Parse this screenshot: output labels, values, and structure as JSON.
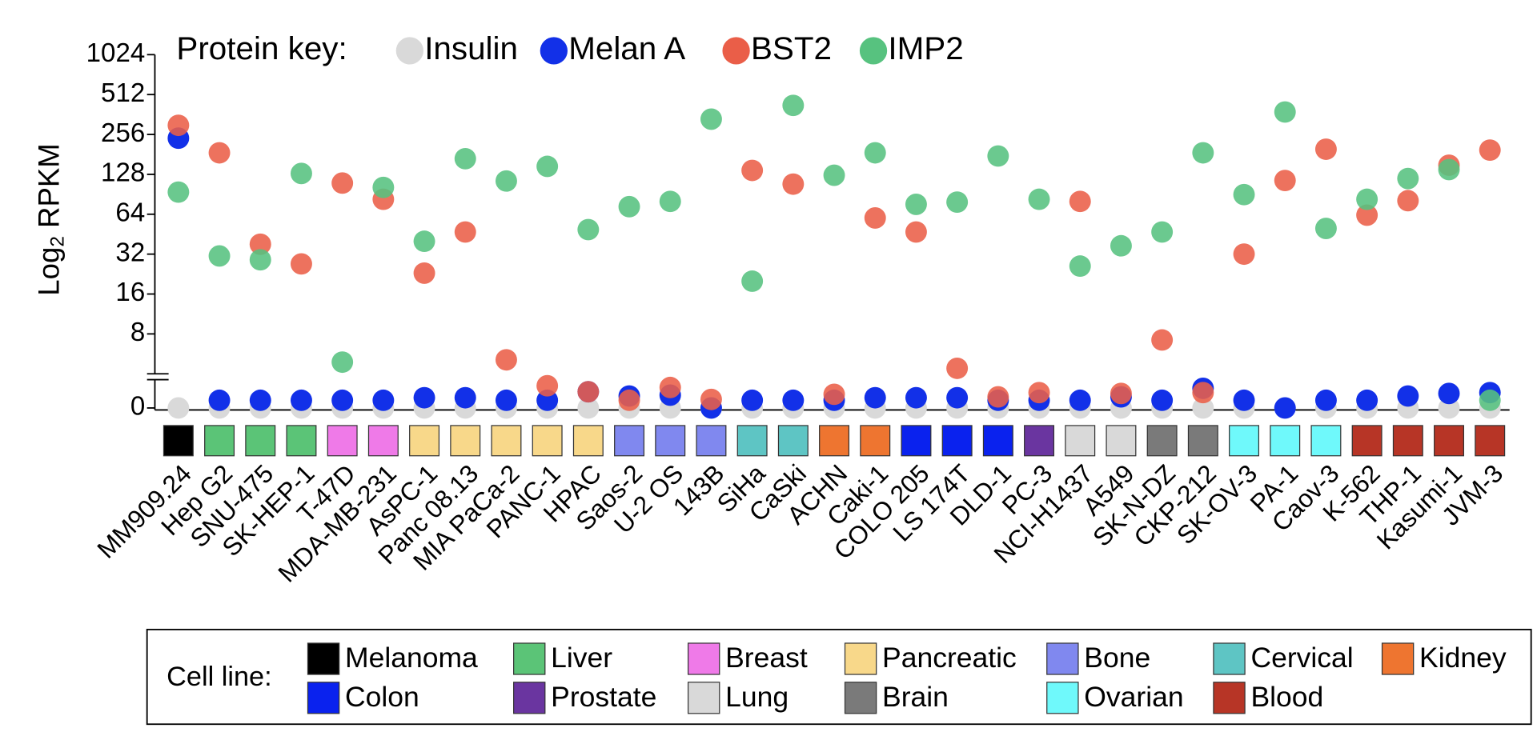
{
  "chart_data": {
    "type": "dot",
    "ylabel_parts": [
      "Log",
      "2",
      "RPKM"
    ],
    "yscale": "log",
    "log_base": 2,
    "axis_break": true,
    "ylim": [
      0,
      1024
    ],
    "yticks": [
      0,
      8,
      16,
      32,
      64,
      128,
      256,
      512,
      1024
    ],
    "legend_title": "Protein key:",
    "categories": [
      "MM909.24",
      "Hep G2",
      "SNU-475",
      "SK-HEP-1",
      "T-47D",
      "MDA-MB-231",
      "AsPC-1",
      "Panc 08.13",
      "MIA PaCa-2",
      "PANC-1",
      "HPAC",
      "Saos-2",
      "U-2 OS",
      "143B",
      "SiHa",
      "CaSki",
      "ACHN",
      "Caki-1",
      "COLO 205",
      "LS 174T",
      "DLD-1",
      "PC-3",
      "NCI-H1437",
      "A549",
      "SK-N-DZ",
      "CKP-212",
      "SK-OV-3",
      "PA-1",
      "Caov-3",
      "K-562",
      "THP-1",
      "Kasumi-1",
      "JVM-3"
    ],
    "category_colors": [
      "#000000",
      "#5bc477",
      "#5bc477",
      "#5bc477",
      "#ef7ae8",
      "#ef7ae8",
      "#f8d88a",
      "#f8d88a",
      "#f8d88a",
      "#f8d88a",
      "#f8d88a",
      "#8088ef",
      "#8088ef",
      "#8088ef",
      "#5ec5c4",
      "#5ec5c4",
      "#ee7530",
      "#ee7530",
      "#0a22ee",
      "#0a22ee",
      "#0a22ee",
      "#6a35a0",
      "#d9d9d9",
      "#d9d9d9",
      "#7a7a7a",
      "#7a7a7a",
      "#6ff9fb",
      "#6ff9fb",
      "#6ff9fb",
      "#b73526",
      "#b73526",
      "#b73526",
      "#b73526"
    ],
    "series": [
      {
        "name": "Insulin",
        "color": "#d9d9d9",
        "values": [
          0,
          0,
          0,
          0,
          0,
          0,
          0,
          0,
          0,
          0,
          0,
          0,
          0,
          0,
          0,
          0,
          0,
          0,
          0,
          0,
          0,
          0,
          0,
          0,
          0,
          0,
          0,
          0,
          0,
          0,
          0,
          0,
          0
        ]
      },
      {
        "name": "Melan A",
        "color": "#1230e8",
        "values": [
          240,
          0.9,
          0.9,
          0.9,
          0.9,
          0.9,
          1.2,
          1.2,
          0.9,
          0.9,
          1.9,
          1.4,
          1.5,
          0,
          0.9,
          0.9,
          0.9,
          1.2,
          1.2,
          1.2,
          0.9,
          0.9,
          0.9,
          1.3,
          0.9,
          2.3,
          0.9,
          0,
          0.9,
          0.9,
          1.4,
          1.7,
          1.8
        ]
      },
      {
        "name": "BST2",
        "color": "#ea5e48",
        "values": [
          300,
          186,
          38,
          27,
          110,
          83,
          23,
          47,
          5.1,
          2.6,
          1.9,
          0.9,
          2.4,
          1.0,
          137,
          108,
          1.6,
          60,
          47,
          4.4,
          1.3,
          1.8,
          80,
          1.7,
          7.2,
          1.8,
          32,
          115,
          198,
          63,
          81,
          150,
          195
        ]
      },
      {
        "name": "IMP2",
        "color": "#57c27f",
        "values": [
          94,
          31,
          29,
          130,
          4.9,
          102,
          40,
          168,
          114,
          147,
          49,
          73,
          80,
          334,
          20,
          424,
          126,
          186,
          76,
          79,
          176,
          83,
          26,
          37,
          47,
          186,
          90,
          378,
          50,
          83,
          119,
          139,
          0.9
        ]
      }
    ],
    "cell_line_key": {
      "title": "Cell line:",
      "items": [
        {
          "name": "Melanoma",
          "color": "#000000"
        },
        {
          "name": "Liver",
          "color": "#5bc477"
        },
        {
          "name": "Breast",
          "color": "#ef7ae8"
        },
        {
          "name": "Pancreatic",
          "color": "#f8d88a"
        },
        {
          "name": "Bone",
          "color": "#8088ef"
        },
        {
          "name": "Cervical",
          "color": "#5ec5c4"
        },
        {
          "name": "Kidney",
          "color": "#ee7530"
        },
        {
          "name": "Colon",
          "color": "#0a22ee"
        },
        {
          "name": "Prostate",
          "color": "#6a35a0"
        },
        {
          "name": "Lung",
          "color": "#d9d9d9"
        },
        {
          "name": "Brain",
          "color": "#7a7a7a"
        },
        {
          "name": "Ovarian",
          "color": "#6ff9fb"
        },
        {
          "name": "Blood",
          "color": "#b73526"
        }
      ]
    }
  }
}
